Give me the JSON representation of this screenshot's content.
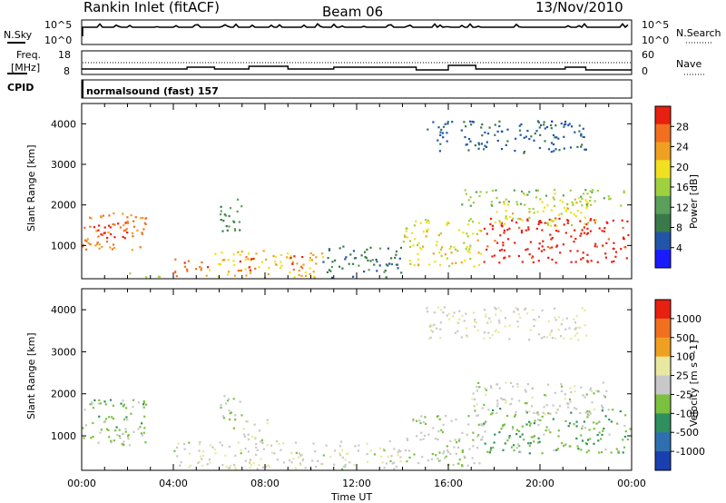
{
  "header": {
    "title": "Rankin Inlet (fitACF)",
    "beam": "Beam 06",
    "date": "13/Nov/2010"
  },
  "sky_panel": {
    "left_label": "N.Sky",
    "right_label": "N.Search",
    "left_ticks": [
      "10^5",
      "10^0"
    ],
    "right_ticks": [
      "10^5",
      "10^0"
    ]
  },
  "freq_panel": {
    "left_label_1": "Freq.",
    "left_label_2": "[MHz]",
    "right_label": "Nave",
    "left_ticks": [
      "18",
      "8"
    ],
    "right_ticks": [
      "60",
      "0"
    ],
    "cpid_label": "CPID",
    "program": "normalsound (fast) 157"
  },
  "time_axis": {
    "xlabel": "Time UT",
    "ticks": [
      "00:00",
      "04:00",
      "08:00",
      "12:00",
      "16:00",
      "20:00",
      "00:00"
    ]
  },
  "colors": {
    "power_scale": [
      "#1a1aff",
      "#2255aa",
      "#3a7a4a",
      "#5aa05a",
      "#a0d040",
      "#f0e020",
      "#f0a020",
      "#f07020",
      "#e82010"
    ],
    "velocity_scale": [
      "#1a3fb0",
      "#2f6fb0",
      "#2f8f5f",
      "#7cc040",
      "#c8c8c8",
      "#e8e8a0",
      "#f0a020",
      "#f07020",
      "#e82010"
    ]
  },
  "chart_data": [
    {
      "type": "heatmap",
      "title": "",
      "xlabel": "",
      "ylabel": "Slant Range [km]",
      "quantity": "Power",
      "colorbar_label": "Power [dB]",
      "colorbar_ticks": [
        "28",
        "24",
        "20",
        "16",
        "12",
        "8",
        "4"
      ],
      "ylim": [
        180,
        4500
      ],
      "y_ticks": [
        "1000",
        "2000",
        "3000",
        "4000"
      ],
      "xlim_hours": [
        0,
        24
      ],
      "clim": [
        0,
        30
      ],
      "blobs": [
        {
          "t0": 0.0,
          "t1": 2.8,
          "r0": 900,
          "r1": 1900,
          "v": 24
        },
        {
          "t0": 0.5,
          "t1": 2.0,
          "r0": 1100,
          "r1": 1600,
          "v": 30
        },
        {
          "t0": 4.0,
          "t1": 5.5,
          "r0": 200,
          "r1": 700,
          "v": 26
        },
        {
          "t0": 5.5,
          "t1": 10.5,
          "r0": 200,
          "r1": 900,
          "v": 20
        },
        {
          "t0": 6.8,
          "t1": 7.8,
          "r0": 400,
          "r1": 800,
          "v": 28
        },
        {
          "t0": 9.0,
          "t1": 9.8,
          "r0": 400,
          "r1": 800,
          "v": 27
        },
        {
          "t0": 6.0,
          "t1": 7.0,
          "r0": 1200,
          "r1": 2200,
          "v": 10
        },
        {
          "t0": 10.5,
          "t1": 14.0,
          "r0": 200,
          "r1": 1000,
          "v": 8
        },
        {
          "t0": 14.0,
          "t1": 17.5,
          "r0": 500,
          "r1": 1700,
          "v": 18
        },
        {
          "t0": 17.5,
          "t1": 24.0,
          "r0": 600,
          "r1": 1700,
          "v": 29
        },
        {
          "t0": 18.0,
          "t1": 22.5,
          "r0": 1500,
          "r1": 2200,
          "v": 18
        },
        {
          "t0": 16.5,
          "t1": 24.0,
          "r0": 2000,
          "r1": 2400,
          "v": 14
        },
        {
          "t0": 2.0,
          "t1": 3.5,
          "r0": 200,
          "r1": 350,
          "v": 16
        },
        {
          "t0": 15.0,
          "t1": 22.0,
          "r0": 3300,
          "r1": 4100,
          "v": 6
        }
      ]
    },
    {
      "type": "heatmap",
      "title": "",
      "xlabel": "Time UT",
      "ylabel": "Slant Range [km]",
      "quantity": "Velocity",
      "colorbar_label": "Velocity [m s^-1]",
      "colorbar_ticks": [
        "1000",
        "500",
        "100",
        "25",
        "-25",
        "-100",
        "-500",
        "-1000"
      ],
      "ylim": [
        180,
        4500
      ],
      "y_ticks": [
        "1000",
        "2000",
        "3000",
        "4000"
      ],
      "xlim_hours": [
        0,
        24
      ],
      "clim": [
        -1200,
        1200
      ],
      "blobs": [
        {
          "t0": 0.0,
          "t1": 2.8,
          "r0": 1000,
          "r1": 1900,
          "v": -250
        },
        {
          "t0": 0.0,
          "t1": 2.8,
          "r0": 800,
          "r1": 1200,
          "v": -120
        },
        {
          "t0": 4.0,
          "t1": 11.0,
          "r0": 200,
          "r1": 900,
          "v": 60
        },
        {
          "t0": 6.0,
          "t1": 7.0,
          "r0": 1200,
          "r1": 2000,
          "v": -150
        },
        {
          "t0": 7.0,
          "t1": 8.2,
          "r0": 800,
          "r1": 1400,
          "v": 10
        },
        {
          "t0": 11.0,
          "t1": 14.0,
          "r0": 200,
          "r1": 900,
          "v": 40
        },
        {
          "t0": 14.0,
          "t1": 17.5,
          "r0": 300,
          "r1": 1500,
          "v": -80
        },
        {
          "t0": 17.5,
          "t1": 24.0,
          "r0": 600,
          "r1": 1700,
          "v": -300
        },
        {
          "t0": 17.0,
          "t1": 23.0,
          "r0": 1500,
          "r1": 2300,
          "v": 10
        },
        {
          "t0": 15.0,
          "t1": 22.0,
          "r0": 3300,
          "r1": 4100,
          "v": 120
        }
      ]
    }
  ]
}
